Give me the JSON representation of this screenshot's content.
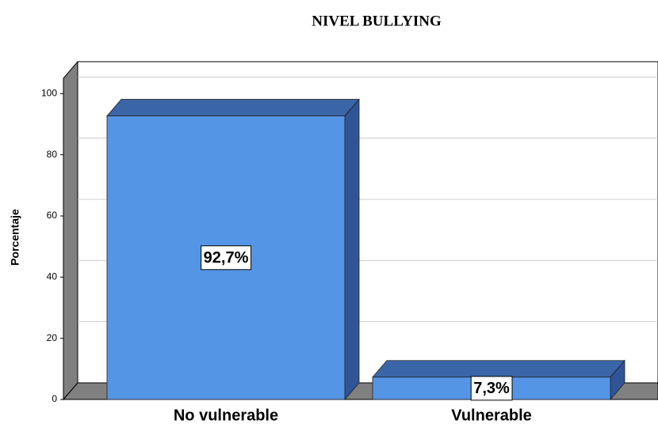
{
  "chart_data": {
    "type": "bar3d",
    "title": "NIVEL BULLYING",
    "ylabel": "Porcentaje",
    "categories": [
      "No vulnerable",
      "Vulnerable"
    ],
    "values": [
      92.7,
      7.3
    ],
    "value_labels": [
      "92,7%",
      "7,3%"
    ],
    "color": "#5595e5",
    "ylim": [
      0,
      105
    ],
    "yticks": [
      0,
      20,
      40,
      60,
      80,
      100
    ],
    "grid": true
  }
}
